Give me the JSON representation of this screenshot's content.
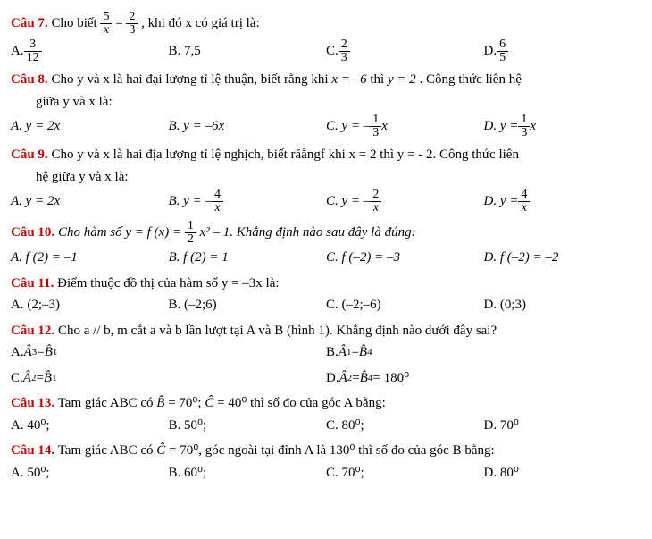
{
  "q7": {
    "label": "Câu 7.",
    "text_before": "Cho biết ",
    "frac1_num": "5",
    "frac1_den": "x",
    "eq": " = ",
    "frac2_num": "2",
    "frac2_den": "3",
    "text_after": ", khi đó x có giá trị là:",
    "A_pre": "A. ",
    "A_num": "3",
    "A_den": "12",
    "B": "B. 7,5",
    "C_pre": "C. ",
    "C_num": "2",
    "C_den": "3",
    "D_pre": "D. ",
    "D_num": "6",
    "D_den": "5"
  },
  "q8": {
    "label": "Câu 8.",
    "line1a": "Cho y và x là hai đại lượng tỉ lệ thuận, biết rằng khi ",
    "xeq": "x = –6",
    "thi": " thì ",
    "yeq": "y = 2",
    "line1b": ". Công thức liên hệ",
    "line2": "giữa y và x là:",
    "A": "A.  y = 2x",
    "B": "B.  y = –6x",
    "C_pre": "C.  y = –",
    "C_num": "1",
    "C_den": "3",
    "C_suf": "x",
    "D_pre": "D.  y = ",
    "D_num": "1",
    "D_den": "3",
    "D_suf": "x"
  },
  "q9": {
    "label": "Câu 9.",
    "line1": "Cho y và x là hai địa lượng tỉ lệ nghịch, biết răằngf khi x = 2 thì y = - 2. Công thức liên",
    "line2": "hệ giữa y và x là:",
    "A": "A.  y = 2x",
    "B_pre": "B.  y = –",
    "B_num": "4",
    "B_den": "x",
    "C_pre": "C.  y = –",
    "C_num": "2",
    "C_den": "x",
    "D_pre": "D.  y = ",
    "D_num": "4",
    "D_den": "x"
  },
  "q10": {
    "label": "Câu 10.",
    "text_a": "Cho hàm số  y = f (x) = ",
    "num": "1",
    "den": "2",
    "text_b": "x² – 1. Khẳng định nào sau đây là đúng:",
    "A": "A.  f (2) = –1",
    "B": "B.  f (2) = 1",
    "C": "C.  f (–2) = –3",
    "D": "D.  f (–2) = –2"
  },
  "q11": {
    "label": "Câu 11.",
    "text": "Điểm thuộc đồ thị của hàm số  y = –3x  là:",
    "A": "A. (2;–3)",
    "B": "B. (–2;6)",
    "C": "C. (–2;–6)",
    "D": "D. (0;3)"
  },
  "q12": {
    "label": "Câu 12.",
    "text": "Cho a // b, m cắt a và b lần lượt tại A và B (hình 1). Khẳng định nào dưới đây sai?",
    "A_pre": "A. ",
    "A_l": "Â",
    "A_ls": "3",
    "A_eq": " = ",
    "A_r": "B̂",
    "A_rs": "1",
    "B_pre": "B. ",
    "B_l": "Â",
    "B_ls": "1",
    "B_eq": " = ",
    "B_r": "B̂",
    "B_rs": "4",
    "C_pre": "C. ",
    "C_l": "Â",
    "C_ls": "2",
    "C_eq": " = ",
    "C_r": "B̂",
    "C_rs": "1",
    "D_pre": "D. ",
    "D_l": "Â",
    "D_ls": "2",
    "D_eq": " = ",
    "D_r": "B̂",
    "D_rs": "4",
    "D_suf": " = 180⁰"
  },
  "q13": {
    "label": "Câu 13.",
    "text_a": "Tam giác ABC có ",
    "bhat": "B̂",
    "beq": " = 70⁰; ",
    "chat": "Ĉ",
    "ceq": " = 40⁰ thì số đo của góc A bằng:",
    "A": "A. 40⁰;",
    "B": "B. 50⁰;",
    "C": "C. 80⁰;",
    "D": "D. 70⁰"
  },
  "q14": {
    "label": "Câu 14.",
    "text_a": "Tam giác ABC có ",
    "chat": "Ĉ",
    "text_b": " = 70⁰, góc ngoài tại đỉnh A là 130⁰ thì số đo của góc B bằng:",
    "A": "A. 50⁰;",
    "B": "B. 60⁰;",
    "C": "C. 70⁰;",
    "D": "D. 80⁰"
  }
}
